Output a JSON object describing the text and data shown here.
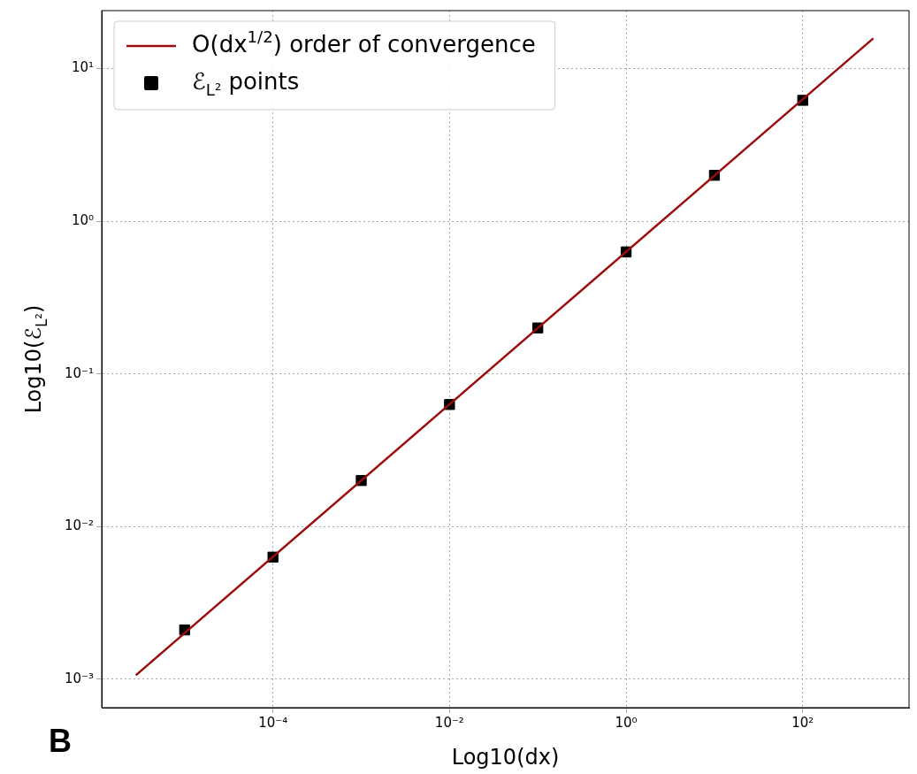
{
  "chart_data": {
    "type": "scatter",
    "xlabel": "Log10(dx)",
    "ylabel": "Log10(ℰ$_{L²}$)",
    "annotations": [
      "B"
    ],
    "log": "xy",
    "grid": true,
    "legend": "top left",
    "xlim": [
      1.15e-06,
      1600
    ],
    "ylim": [
      0.00065,
      24
    ],
    "xticks": [
      {
        "value": 0.0001,
        "label": "10⁻⁴"
      },
      {
        "value": 0.01,
        "label": "10⁻²"
      },
      {
        "value": 1,
        "label": "10⁰"
      },
      {
        "value": 100,
        "label": "10²"
      }
    ],
    "yticks": [
      {
        "value": 0.001,
        "label": "10⁻³"
      },
      {
        "value": 0.01,
        "label": "10⁻²"
      },
      {
        "value": 0.1,
        "label": "10⁻¹"
      },
      {
        "value": 1,
        "label": "10⁰"
      },
      {
        "value": 10,
        "label": "10¹"
      }
    ],
    "series": [
      {
        "name": "O(dx$^{1/2}$) order of convergence",
        "type": "line",
        "color": "#9b0d0d",
        "marker": "none",
        "line_style": "solid",
        "x": [
          2.8e-06,
          630
        ],
        "values": [
          0.00106,
          15.8
        ]
      },
      {
        "name": "ℰ$_{L²}$ points",
        "color": "#000000",
        "marker": "square",
        "x": [
          1e-05,
          0.0001,
          0.001,
          0.01,
          0.1,
          1,
          10,
          100
        ],
        "values": [
          0.0021,
          0.0063,
          0.02,
          0.063,
          0.2,
          0.63,
          2,
          6.2
        ]
      }
    ]
  }
}
